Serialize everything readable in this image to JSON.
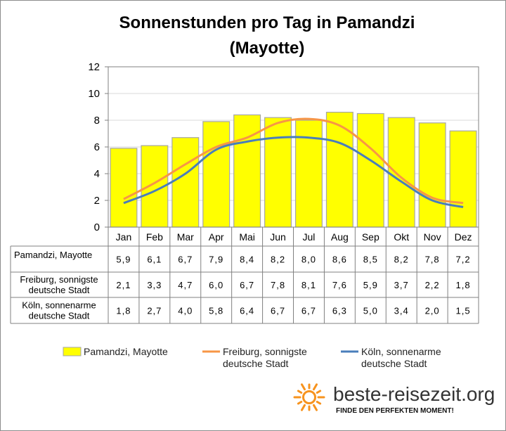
{
  "chart_data": {
    "type": "bar",
    "title_line1": "Sonnenstunden pro Tag in Pamandzi",
    "title_line2": "(Mayotte)",
    "categories": [
      "Jan",
      "Feb",
      "Mar",
      "Apr",
      "Mai",
      "Jun",
      "Jul",
      "Aug",
      "Sep",
      "Okt",
      "Nov",
      "Dez"
    ],
    "ylim": [
      0,
      12
    ],
    "yticks": [
      0,
      2,
      4,
      6,
      8,
      10,
      12
    ],
    "grid": true,
    "legend_position": "bottom",
    "series": [
      {
        "name": "Pamandzi, Mayotte",
        "label_lines": [
          "Pamandzi, Mayotte"
        ],
        "type": "bar",
        "color": "#ffff00",
        "values": [
          5.9,
          6.1,
          6.7,
          7.9,
          8.4,
          8.2,
          8.0,
          8.6,
          8.5,
          8.2,
          7.8,
          7.2
        ],
        "display": [
          "5,9",
          "6,1",
          "6,7",
          "7,9",
          "8,4",
          "8,2",
          "8,0",
          "8,6",
          "8,5",
          "8,2",
          "7,8",
          "7,2"
        ]
      },
      {
        "name": "Freiburg, sonnigste deutsche Stadt",
        "label_lines": [
          "Freiburg, sonnigste",
          "deutsche Stadt"
        ],
        "type": "line",
        "color": "#f79646",
        "values": [
          2.1,
          3.3,
          4.7,
          6.0,
          6.7,
          7.8,
          8.1,
          7.6,
          5.9,
          3.7,
          2.2,
          1.8
        ],
        "display": [
          "2,1",
          "3,3",
          "4,7",
          "6,0",
          "6,7",
          "7,8",
          "8,1",
          "7,6",
          "5,9",
          "3,7",
          "2,2",
          "1,8"
        ]
      },
      {
        "name": "Köln, sonnenarme deutsche Stadt",
        "label_lines": [
          "Köln, sonnenarme",
          "deutsche Stadt"
        ],
        "type": "line",
        "color": "#4a7ebb",
        "values": [
          1.8,
          2.7,
          4.0,
          5.8,
          6.4,
          6.7,
          6.7,
          6.3,
          5.0,
          3.4,
          2.0,
          1.5
        ],
        "display": [
          "1,8",
          "2,7",
          "4,0",
          "5,8",
          "6,4",
          "6,7",
          "6,7",
          "6,3",
          "5,0",
          "3,4",
          "2,0",
          "1,5"
        ]
      }
    ]
  },
  "logo": {
    "text": "beste-reisezeit.org",
    "tagline": "FINDE DEN PERFEKTEN MOMENT!",
    "icon": "sun-icon",
    "color": "#f7931e"
  }
}
